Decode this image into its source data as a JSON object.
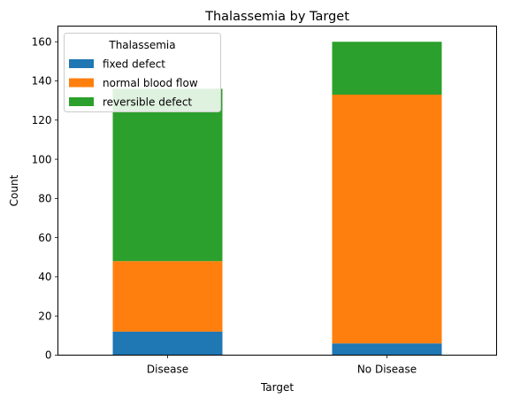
{
  "chart_data": {
    "type": "bar",
    "stacked": true,
    "title": "Thalassemia by Target",
    "xlabel": "Target",
    "ylabel": "Count",
    "categories": [
      "Disease",
      "No Disease"
    ],
    "ylim": [
      0,
      168
    ],
    "yticks": [
      0,
      20,
      40,
      60,
      80,
      100,
      120,
      140,
      160
    ],
    "grid": false,
    "legend": {
      "title": "Thalassemia",
      "placement": "top-left"
    },
    "series": [
      {
        "name": "fixed defect",
        "values": [
          12,
          6
        ],
        "color": "#1f77b4"
      },
      {
        "name": "normal blood flow",
        "values": [
          36,
          127
        ],
        "color": "#ff7f0e"
      },
      {
        "name": "reversible defect",
        "values": [
          88,
          27
        ],
        "color": "#2ca02c"
      }
    ]
  }
}
